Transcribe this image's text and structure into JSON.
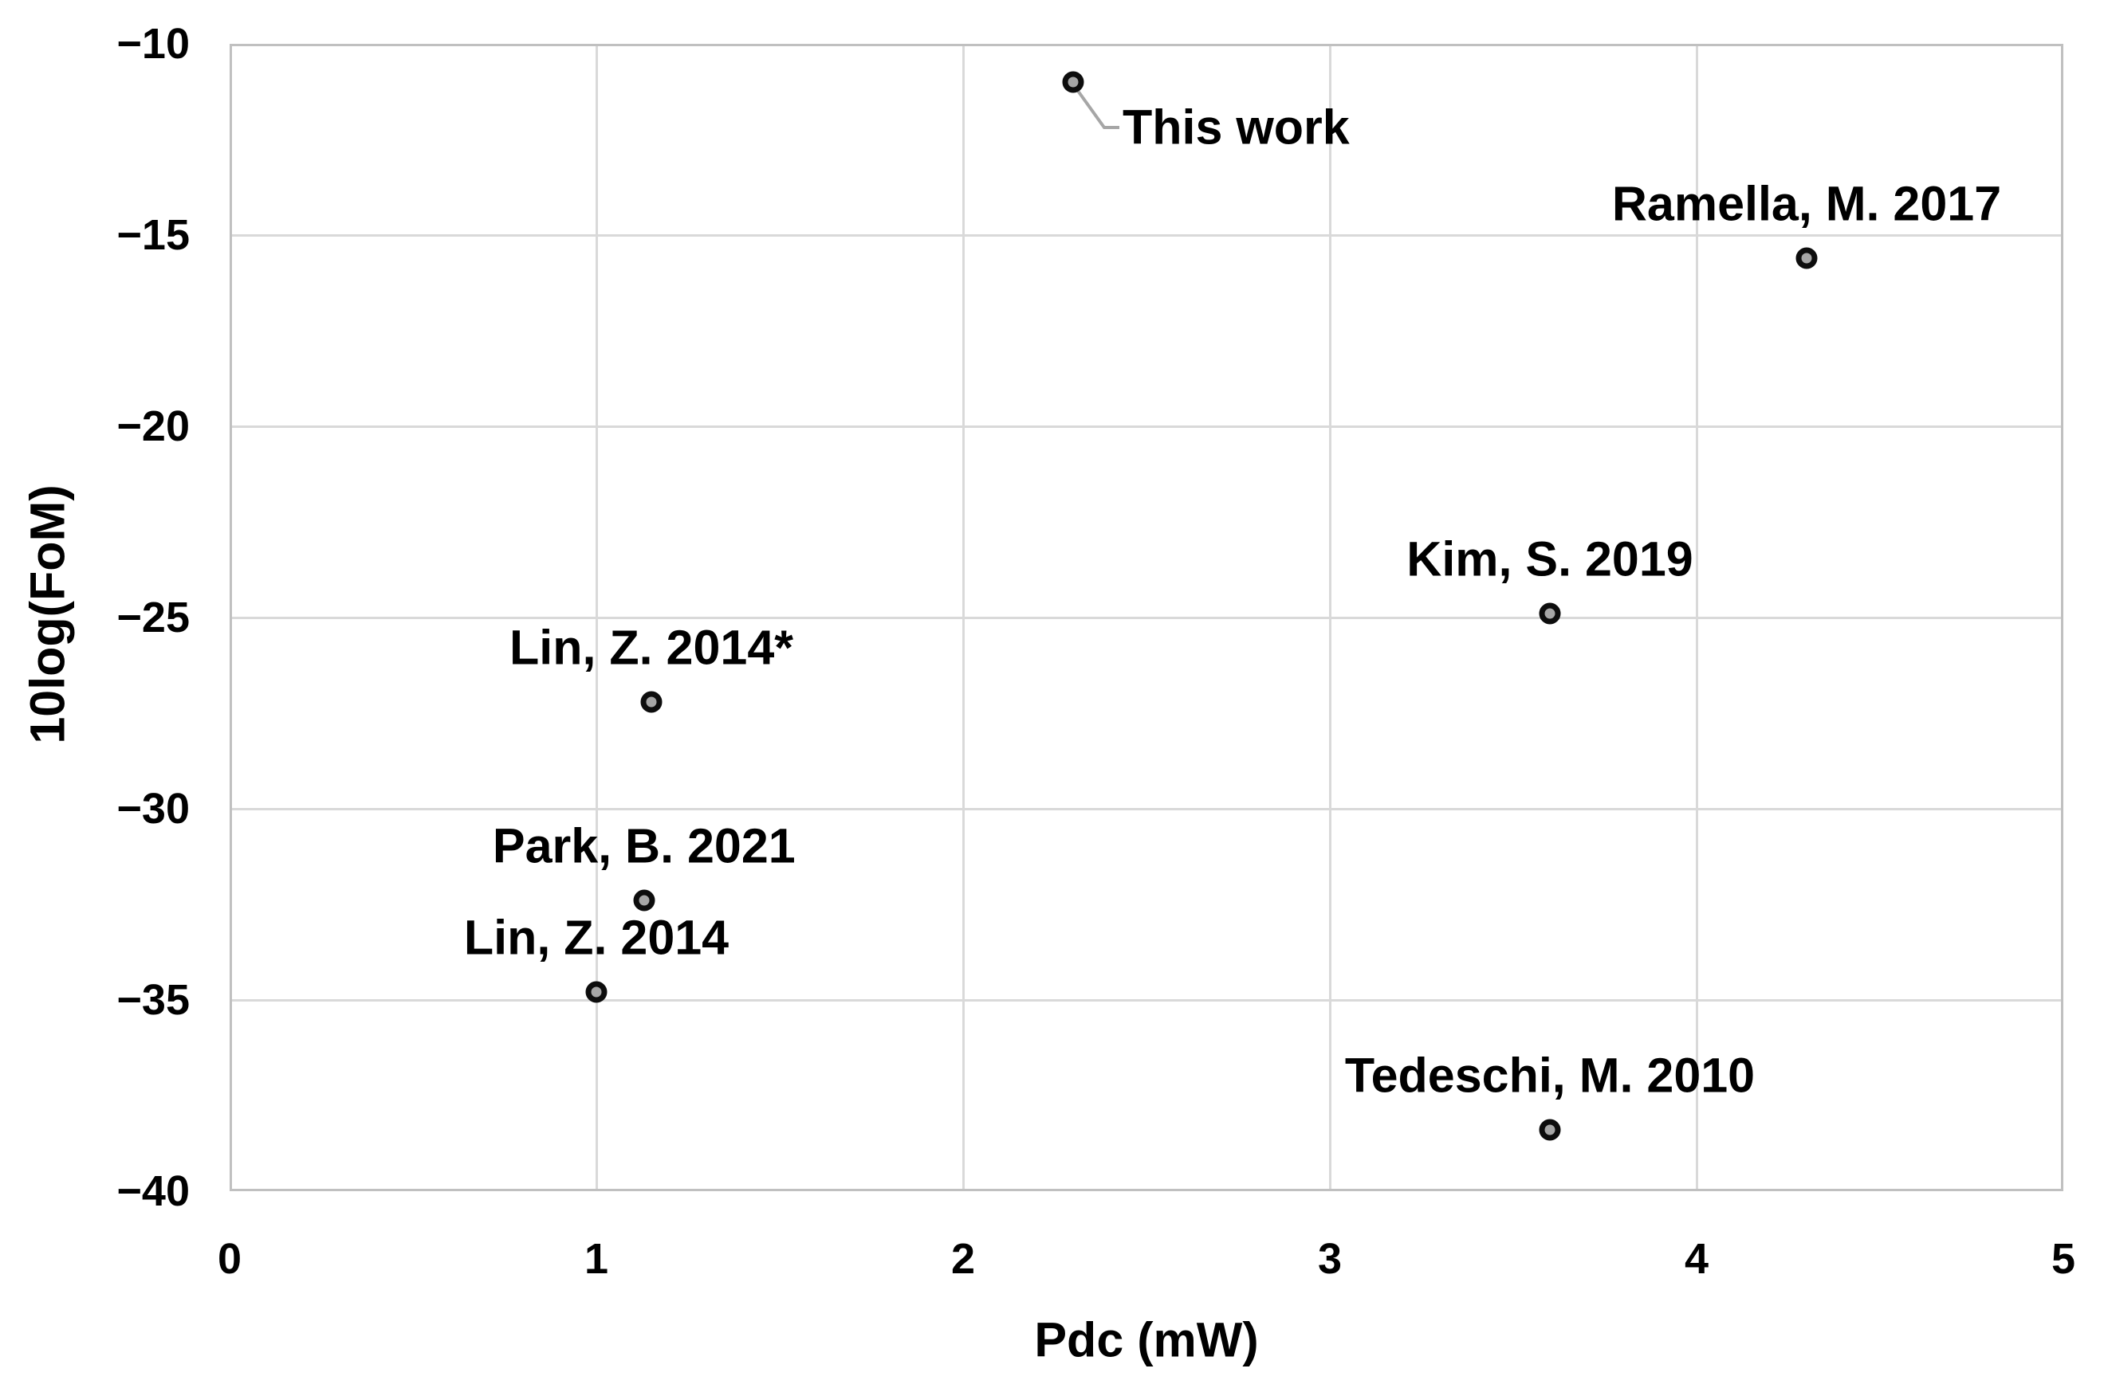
{
  "chart_data": {
    "type": "scatter",
    "title": "",
    "xlabel": "Pdc (mW)",
    "ylabel": "10log(FoM)",
    "xlim": [
      0,
      5
    ],
    "ylim": [
      -40,
      -10
    ],
    "x_ticks": [
      0,
      1,
      2,
      3,
      4,
      5
    ],
    "x_tick_labels": [
      "0",
      "1",
      "2",
      "3",
      "4",
      "5"
    ],
    "y_ticks": [
      -10,
      -15,
      -20,
      -25,
      -30,
      -35,
      -40
    ],
    "y_tick_labels": [
      "−10",
      "−15",
      "−20",
      "−25",
      "−30",
      "−35",
      "−40"
    ],
    "grid": true,
    "legend": "none",
    "points": [
      {
        "label": "This work",
        "x": 2.3,
        "y": -11.0,
        "label_placement": "right-leader"
      },
      {
        "label": "Ramella, M. 2017",
        "x": 4.3,
        "y": -15.6,
        "label_placement": "above"
      },
      {
        "label": "Kim, S. 2019",
        "x": 3.6,
        "y": -24.9,
        "label_placement": "above"
      },
      {
        "label": "Lin, Z. 2014*",
        "x": 1.15,
        "y": -27.2,
        "label_placement": "above"
      },
      {
        "label": "Park, B. 2021",
        "x": 1.13,
        "y": -32.4,
        "label_placement": "above"
      },
      {
        "label": "Lin, Z. 2014",
        "x": 1.0,
        "y": -34.8,
        "label_placement": "above"
      },
      {
        "label": "Tedeschi, M. 2010",
        "x": 3.6,
        "y": -38.4,
        "label_placement": "above"
      }
    ],
    "colors": {
      "marker_fill": "#a6a6a6",
      "marker_stroke": "#0d0d0d",
      "gridline": "#d9d9d9",
      "plot_border": "#c0c0c0",
      "text": "#000000",
      "leader_line": "#a6a6a6",
      "background": "#ffffff"
    }
  }
}
